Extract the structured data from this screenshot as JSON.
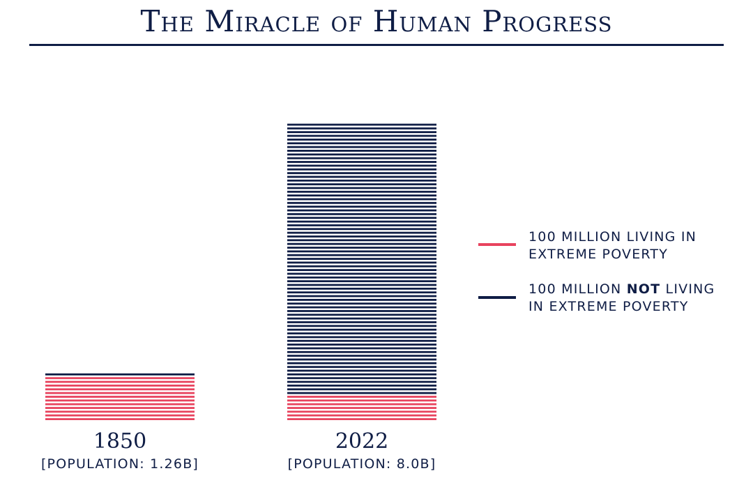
{
  "title": "The Miracle of Human Progress",
  "legend": {
    "poverty": {
      "line1": "100 MILLION LIVING IN",
      "line2": "EXTREME POVERTY",
      "color": "#e8435e"
    },
    "not_poverty": {
      "pre": "100 MILLION ",
      "bold": "NOT",
      "post": " LIVING",
      "line2": "IN EXTREME POVERTY",
      "color": "#0f1d45"
    }
  },
  "chart_data": {
    "type": "bar",
    "title": "The Miracle of Human Progress",
    "unit": "100 million people per line",
    "categories": [
      {
        "year": "1850",
        "population_label": "[POPULATION: 1.26B]"
      },
      {
        "year": "2022",
        "population_label": "[POPULATION: 8.0B]"
      }
    ],
    "series": [
      {
        "name": "100 million living in extreme poverty",
        "color": "#e8435e",
        "values": [
          12,
          7
        ]
      },
      {
        "name": "100 million not living in extreme poverty",
        "color": "#0f1d45",
        "values": [
          1,
          73
        ]
      }
    ]
  }
}
